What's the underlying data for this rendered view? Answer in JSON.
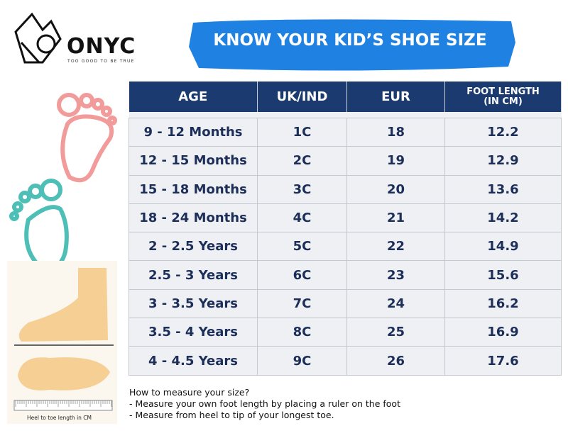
{
  "header": {
    "logo": "ONYC",
    "tagline": "TOO GOOD TO BE TRUE",
    "title": "KNOW YOUR KID’S SHOE SIZE"
  },
  "table": {
    "columns": [
      "AGE",
      "UK/IND",
      "EUR",
      "FOOT LENGTH (IN CM)"
    ],
    "rows": [
      [
        "9 - 12 Months",
        "1C",
        18,
        12.2
      ],
      [
        "12 - 15 Months",
        "2C",
        19,
        12.9
      ],
      [
        "15 - 18 Months",
        "3C",
        20,
        13.6
      ],
      [
        "18 - 24 Months",
        "4C",
        21,
        14.2
      ],
      [
        "2 - 2.5 Years",
        "5C",
        22,
        14.9
      ],
      [
        "2.5 - 3 Years",
        "6C",
        23,
        15.6
      ],
      [
        "3 - 3.5 Years",
        "7C",
        24,
        16.2
      ],
      [
        "3.5 - 4 Years",
        "8C",
        25,
        16.9
      ],
      [
        "4 - 4.5 Years",
        "9C",
        26,
        17.6
      ]
    ]
  },
  "instructions": {
    "heading": "How to measure your size?",
    "lines": [
      "- Measure your own foot length by placing a ruler on the foot",
      "- Measure from heel to tip of your longest toe."
    ]
  },
  "illustration": {
    "caption": "Heel to toe length in CM"
  }
}
